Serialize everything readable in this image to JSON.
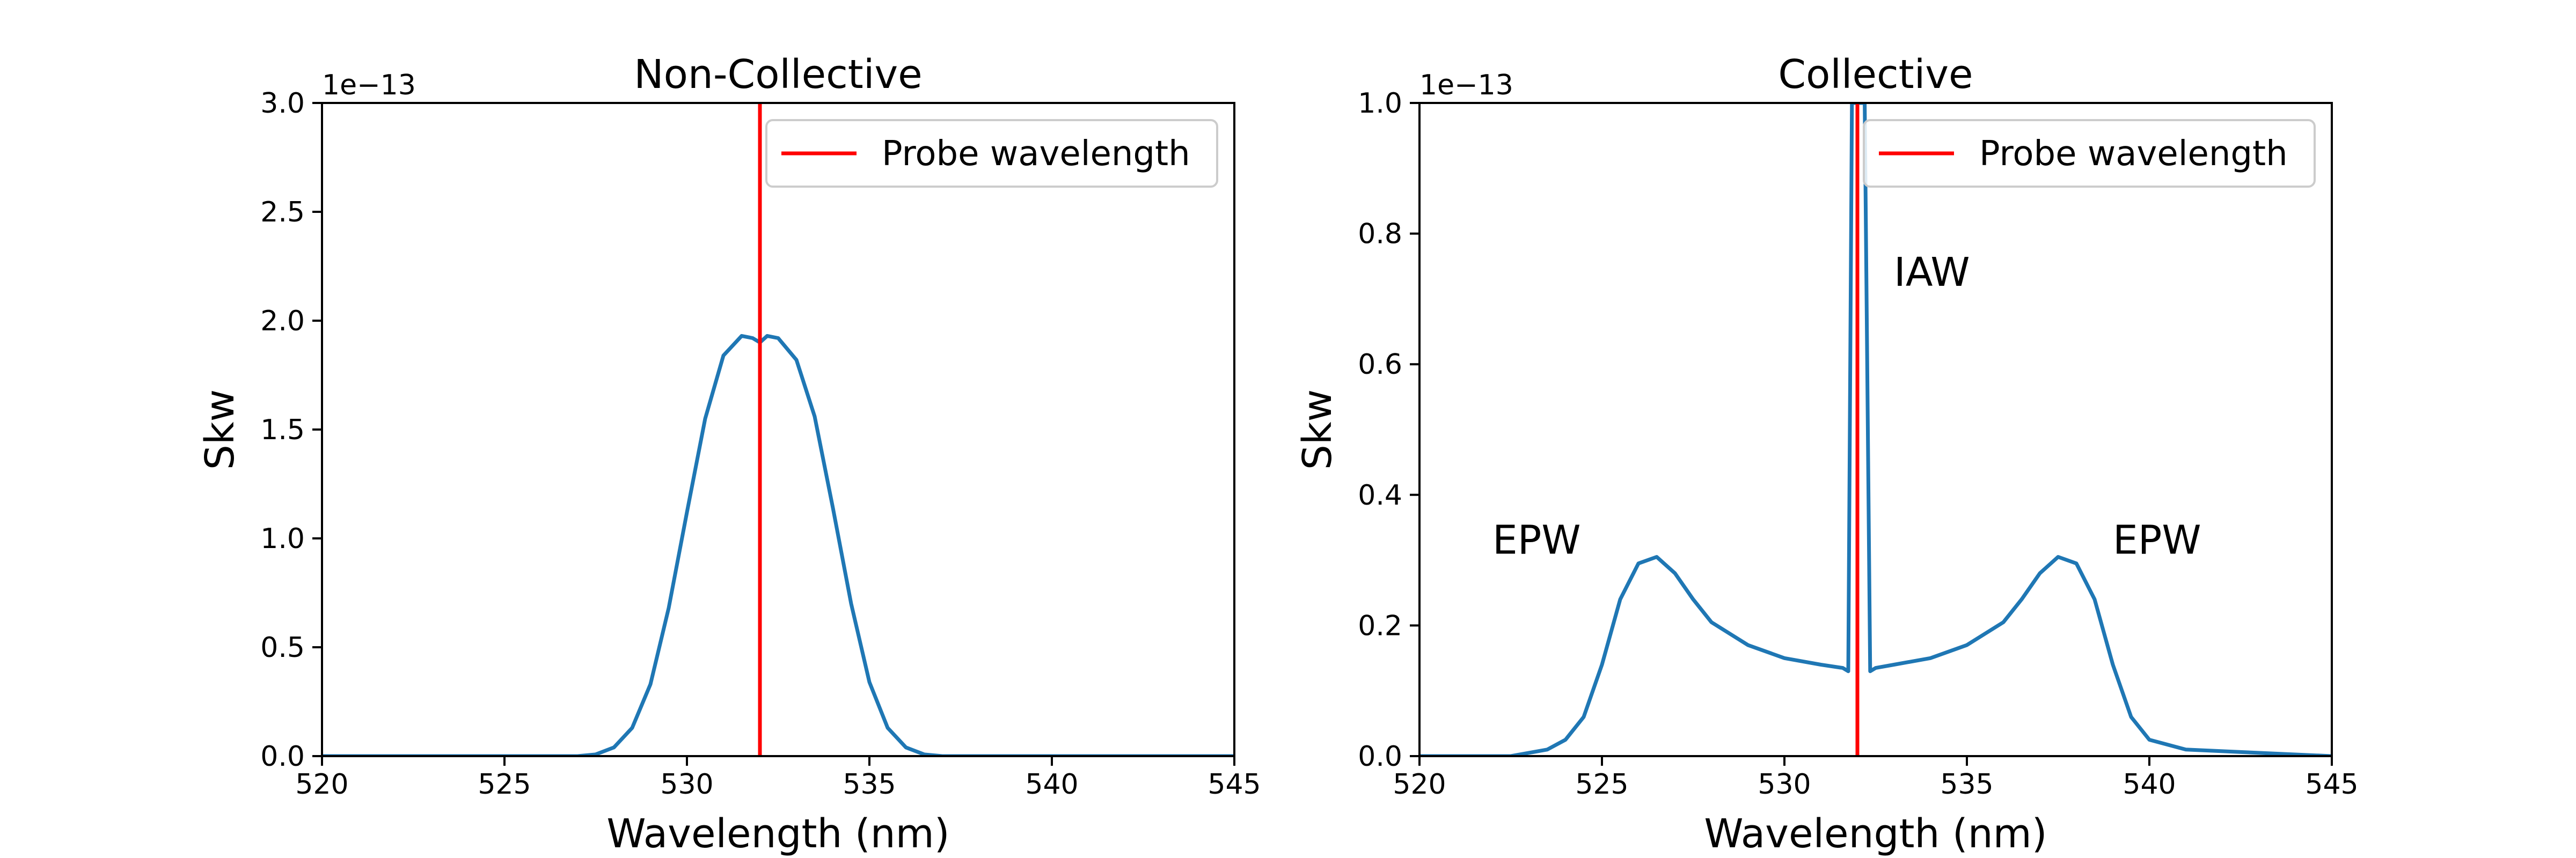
{
  "chart_data": [
    {
      "type": "line",
      "title": "Non-Collective",
      "xlabel": "Wavelength (nm)",
      "ylabel": "Skw",
      "xlim": [
        520,
        545
      ],
      "ylim": [
        0,
        3.0
      ],
      "y_scale_label": "1e−13",
      "xticks": [
        520,
        525,
        530,
        535,
        540,
        545
      ],
      "yticks": [
        0.0,
        0.5,
        1.0,
        1.5,
        2.0,
        2.5,
        3.0
      ],
      "ytick_labels": [
        "0.0",
        "0.5",
        "1.0",
        "1.5",
        "2.0",
        "2.5",
        "3.0"
      ],
      "grid": false,
      "legend": {
        "placement": "top-right",
        "entries": [
          {
            "label": "Probe wavelength",
            "color": "#ff0000"
          }
        ]
      },
      "series": [
        {
          "color": "#1f77b4",
          "x": [
            520,
            527,
            527.5,
            528,
            528.5,
            529,
            529.5,
            530,
            530.5,
            531,
            531.5,
            531.8,
            532,
            532.2,
            532.5,
            533,
            533.5,
            534,
            534.5,
            535,
            535.5,
            536,
            536.5,
            537,
            545
          ],
          "y": [
            0,
            0,
            0.008,
            0.04,
            0.13,
            0.33,
            0.68,
            1.12,
            1.55,
            1.84,
            1.93,
            1.92,
            1.9,
            1.93,
            1.92,
            1.82,
            1.56,
            1.14,
            0.7,
            0.34,
            0.13,
            0.04,
            0.008,
            0,
            0
          ]
        }
      ],
      "vlines": [
        {
          "x": 532,
          "color": "#ff0000",
          "label": "Probe wavelength"
        }
      ],
      "annotations": []
    },
    {
      "type": "line",
      "title": "Collective",
      "xlabel": "Wavelength (nm)",
      "ylabel": "Skw",
      "xlim": [
        520,
        545
      ],
      "ylim": [
        0,
        1.0
      ],
      "y_scale_label": "1e−13",
      "xticks": [
        520,
        525,
        530,
        535,
        540,
        545
      ],
      "yticks": [
        0.0,
        0.2,
        0.4,
        0.6,
        0.8,
        1.0
      ],
      "ytick_labels": [
        "0.0",
        "0.2",
        "0.4",
        "0.6",
        "0.8",
        "1.0"
      ],
      "grid": false,
      "legend": {
        "placement": "top-right",
        "entries": [
          {
            "label": "Probe wavelength",
            "color": "#ff0000"
          }
        ]
      },
      "series": [
        {
          "color": "#1f77b4",
          "x": [
            520,
            522.5,
            523.5,
            524,
            524.5,
            525,
            525.5,
            526,
            526.5,
            527,
            527.5,
            528,
            529,
            530,
            531,
            531.6,
            531.75,
            531.85,
            532.05,
            532.2,
            532.35,
            532.5,
            533,
            534,
            535,
            536,
            536.5,
            537,
            537.5,
            538,
            538.5,
            539,
            539.5,
            540,
            541,
            545
          ],
          "y": [
            0,
            0,
            0.01,
            0.025,
            0.06,
            0.14,
            0.24,
            0.295,
            0.305,
            0.28,
            0.24,
            0.205,
            0.17,
            0.15,
            0.14,
            0.135,
            0.13,
            1.0,
            1.0,
            1.0,
            0.13,
            0.135,
            0.14,
            0.15,
            0.17,
            0.205,
            0.24,
            0.28,
            0.305,
            0.295,
            0.24,
            0.14,
            0.06,
            0.025,
            0.01,
            0
          ]
        }
      ],
      "vlines": [
        {
          "x": 532,
          "color": "#ff0000",
          "label": "Probe wavelength"
        }
      ],
      "annotations": [
        {
          "text": "IAW",
          "x": 533,
          "y": 0.72
        },
        {
          "text": "EPW",
          "x": 522,
          "y": 0.31
        },
        {
          "text": "EPW",
          "x": 539,
          "y": 0.31
        }
      ]
    }
  ]
}
